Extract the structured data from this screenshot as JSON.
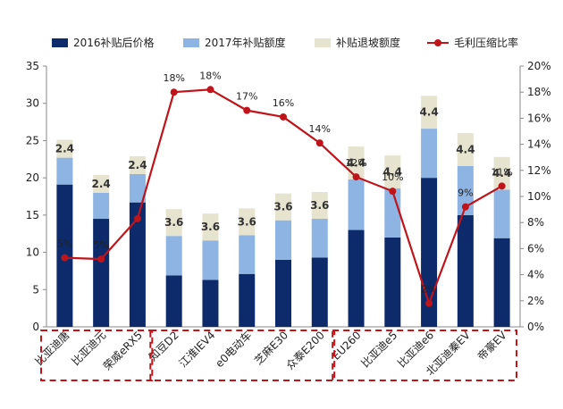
{
  "chart_data": {
    "type": "bar",
    "stacked": true,
    "categories": [
      "比亚迪唐",
      "比亚迪元",
      "荣威eRX5",
      "知豆D2",
      "江淮IEV4",
      "e0电动车",
      "芝麻E30",
      "众泰E200",
      "EU260",
      "比亚迪e5",
      "比亚迪e6",
      "北亚迪秦EV",
      "帝豪EV"
    ],
    "series": [
      {
        "name": "2016补贴后价格",
        "color": "#0d2a6b",
        "values": [
          19.1,
          14.5,
          16.7,
          6.9,
          6.3,
          7.1,
          9.0,
          9.3,
          13.0,
          12.0,
          20.0,
          15.0,
          11.9
        ]
      },
      {
        "name": "2017年补贴额度",
        "color": "#8db4e2",
        "values": [
          3.6,
          3.5,
          3.8,
          5.3,
          5.3,
          5.2,
          5.3,
          5.2,
          6.8,
          6.6,
          6.6,
          6.6,
          6.5
        ]
      },
      {
        "name": "补贴退坡额度",
        "color": "#e6e3cf",
        "values": [
          2.4,
          2.4,
          2.4,
          3.6,
          3.6,
          3.6,
          3.6,
          3.6,
          4.4,
          4.4,
          4.4,
          4.4,
          4.4
        ]
      }
    ],
    "line_series": {
      "name": "毛利压缩比率",
      "color": "#c0141b",
      "axis": "right",
      "values": [
        5.3,
        5.2,
        8.3,
        18.0,
        18.2,
        16.6,
        16.1,
        14.1,
        11.5,
        10.4,
        1.8,
        9.2,
        10.8
      ]
    },
    "segment_labels": [
      "2.4",
      "2.4",
      "2.4",
      "3.6",
      "3.6",
      "3.6",
      "3.6",
      "3.6",
      "4.4",
      "4.4",
      "4.4",
      "4.4",
      "4.4"
    ],
    "percent_labels": [
      "5%",
      "5%",
      "",
      "18%",
      "18%",
      "17%",
      "16%",
      "14%",
      "12%",
      "10%",
      "2%",
      "9%",
      "11%"
    ],
    "y_left": {
      "min": 0,
      "max": 35,
      "step": 5,
      "ticks": [
        "0",
        "5",
        "10",
        "15",
        "20",
        "25",
        "30",
        "35"
      ]
    },
    "y_right": {
      "min": 0,
      "max": 20,
      "step": 2,
      "ticks": [
        "0%",
        "2%",
        "4%",
        "6%",
        "8%",
        "10%",
        "12%",
        "14%",
        "16%",
        "18%",
        "20%"
      ]
    },
    "groups": [
      {
        "name": "group-1",
        "from": 0,
        "to": 2
      },
      {
        "name": "group-2",
        "from": 3,
        "to": 7
      },
      {
        "name": "group-3",
        "from": 8,
        "to": 12
      }
    ],
    "grid": false,
    "legend_position": "top"
  }
}
